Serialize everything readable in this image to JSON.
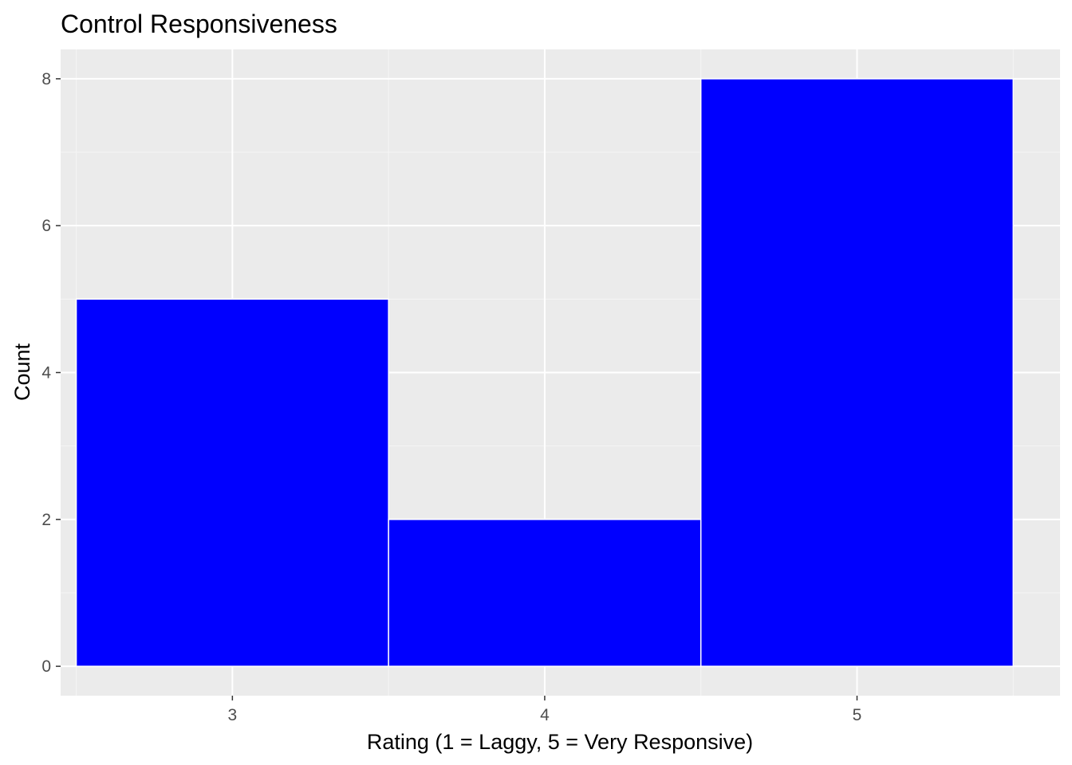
{
  "chart_data": {
    "type": "bar",
    "title": "Control Responsiveness",
    "xlabel": "Rating (1 = Laggy, 5 = Very Responsive)",
    "ylabel": "Count",
    "categories": [
      "3",
      "4",
      "5"
    ],
    "values": [
      5,
      2,
      8
    ],
    "xlim": [
      2.5,
      5.5
    ],
    "ylim": [
      0,
      8
    ],
    "x_ticks": [
      "3",
      "4",
      "5"
    ],
    "y_ticks": [
      "0",
      "2",
      "4",
      "6",
      "8"
    ],
    "grid": true,
    "legend": "none",
    "colors": {
      "bar_fill": "#0000ff",
      "bar_outline": "#ffffff",
      "panel_background": "#ebebeb",
      "grid_major": "#ffffff",
      "grid_minor": "#f5f5f5"
    }
  }
}
